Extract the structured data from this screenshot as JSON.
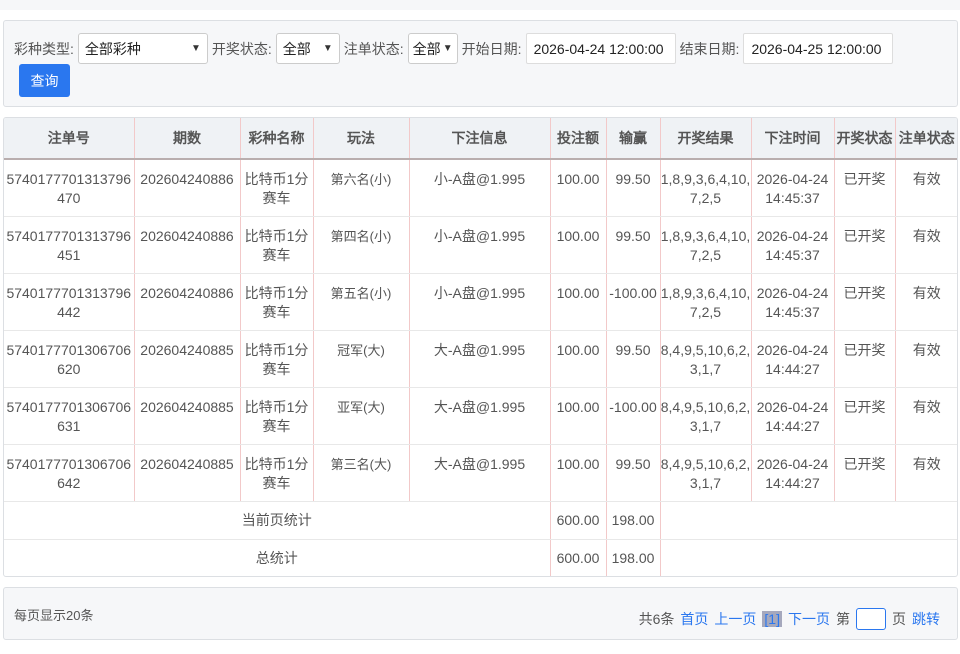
{
  "filters": {
    "lottery_type_label": "彩种类型:",
    "lottery_type_value": "全部彩种",
    "draw_status_label": "开奖状态:",
    "draw_status_value": "全部",
    "order_status_label": "注单状态:",
    "order_status_value": "全部",
    "start_date_label": "开始日期:",
    "start_date_value": "2026-04-24 12:00:00",
    "end_date_label": "结束日期:",
    "end_date_value": "2026-04-25 12:00:00",
    "search_label": "查询"
  },
  "table": {
    "columns": [
      "注单号",
      "期数",
      "彩种名称",
      "玩法",
      "下注信息",
      "投注额",
      "输赢",
      "开奖结果",
      "下注时间",
      "开奖状态",
      "注单状态"
    ],
    "rows": [
      [
        "5740177701313796470",
        "202604240886",
        "比特币1分赛车",
        "第六名(小)",
        "小-A盘@1.995",
        "100.00",
        "99.50",
        "1,8,9,3,6,4,10,7,2,5",
        "2026-04-24 14:45:37",
        "已开奖",
        "有效"
      ],
      [
        "5740177701313796451",
        "202604240886",
        "比特币1分赛车",
        "第四名(小)",
        "小-A盘@1.995",
        "100.00",
        "99.50",
        "1,8,9,3,6,4,10,7,2,5",
        "2026-04-24 14:45:37",
        "已开奖",
        "有效"
      ],
      [
        "5740177701313796442",
        "202604240886",
        "比特币1分赛车",
        "第五名(小)",
        "小-A盘@1.995",
        "100.00",
        "-100.00",
        "1,8,9,3,6,4,10,7,2,5",
        "2026-04-24 14:45:37",
        "已开奖",
        "有效"
      ],
      [
        "5740177701306706620",
        "202604240885",
        "比特币1分赛车",
        "冠军(大)",
        "大-A盘@1.995",
        "100.00",
        "99.50",
        "8,4,9,5,10,6,2,3,1,7",
        "2026-04-24 14:44:27",
        "已开奖",
        "有效"
      ],
      [
        "5740177701306706631",
        "202604240885",
        "比特币1分赛车",
        "亚军(大)",
        "大-A盘@1.995",
        "100.00",
        "-100.00",
        "8,4,9,5,10,6,2,3,1,7",
        "2026-04-24 14:44:27",
        "已开奖",
        "有效"
      ],
      [
        "5740177701306706642",
        "202604240885",
        "比特币1分赛车",
        "第三名(大)",
        "大-A盘@1.995",
        "100.00",
        "99.50",
        "8,4,9,5,10,6,2,3,1,7",
        "2026-04-24 14:44:27",
        "已开奖",
        "有效"
      ]
    ],
    "page_summary": {
      "label": "当前页统计",
      "bet": "600.00",
      "win": "198.00"
    },
    "total_summary": {
      "label": "总统计",
      "bet": "600.00",
      "win": "198.00"
    }
  },
  "pager": {
    "per_page": "每页显示20条",
    "total": "共6条",
    "first": "首页",
    "prev": "上一页",
    "current": "[1]",
    "next": "下一页",
    "page_prefix": "第",
    "page_suffix": "页",
    "jump": "跳转"
  },
  "colors": {
    "accent": "#2a77ef",
    "header_bg": "#eff2f5",
    "column_border": "#f2c9c9"
  }
}
